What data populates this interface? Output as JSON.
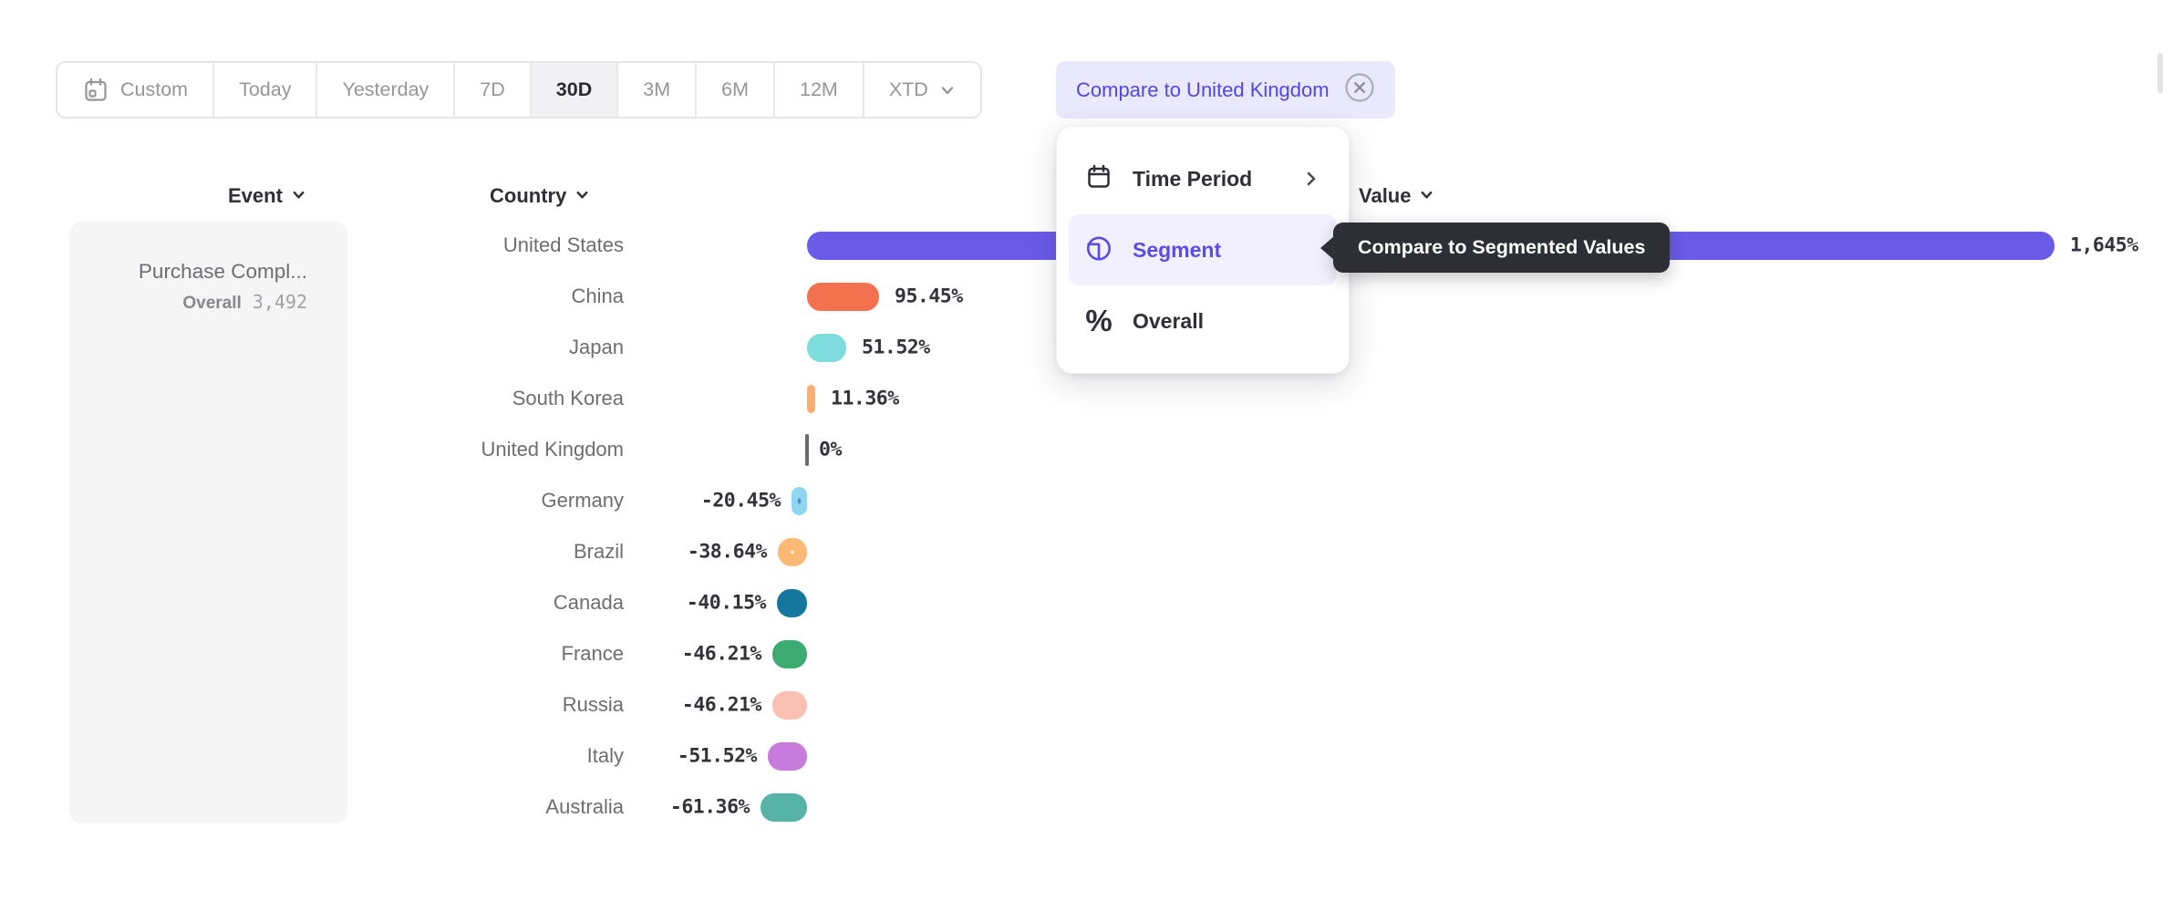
{
  "toolbar": {
    "buttons": [
      {
        "label": "Custom",
        "icon": "calendar-icon",
        "selected": false
      },
      {
        "label": "Today",
        "selected": false
      },
      {
        "label": "Yesterday",
        "selected": false
      },
      {
        "label": "7D",
        "selected": false
      },
      {
        "label": "30D",
        "selected": true
      },
      {
        "label": "3M",
        "selected": false
      },
      {
        "label": "6M",
        "selected": false
      },
      {
        "label": "12M",
        "selected": false
      },
      {
        "label": "XTD",
        "selected": false,
        "has_dropdown": true
      }
    ],
    "compare_chip": {
      "label": "Compare to United Kingdom",
      "close_icon": "circle-x-icon"
    }
  },
  "columns": {
    "event": "Event",
    "country": "Country",
    "value": "Value"
  },
  "event_panel": {
    "event_name": "Purchase Compl...",
    "metric_label": "Overall",
    "metric_value": "3,492"
  },
  "menu": {
    "items": [
      {
        "label": "Time Period",
        "icon": "calendar-icon",
        "has_submenu": true,
        "active": false
      },
      {
        "label": "Segment",
        "icon": "segment-icon",
        "active": true
      },
      {
        "label": "Overall",
        "icon": "percent-icon",
        "active": false
      }
    ]
  },
  "tooltip": {
    "text": "Compare to Segmented Values"
  },
  "colors": {
    "accent": "#5B4BE8",
    "chip_bg": "#E9E8FC",
    "menu_highlight": "#F2F0FC",
    "tooltip_bg": "#2E2E36",
    "selected_segment_bg": "#F1F1F3",
    "zero_line": "#6E686E"
  },
  "chart_data": {
    "type": "bar",
    "orientation": "horizontal",
    "title": "",
    "xlabel": "",
    "ylabel": "Country",
    "xlim": [
      -61.36,
      1645
    ],
    "baseline_value": 0,
    "grid": false,
    "legend": false,
    "categories": [
      "United States",
      "China",
      "Japan",
      "South Korea",
      "United Kingdom",
      "Germany",
      "Brazil",
      "Canada",
      "France",
      "Russia",
      "Italy",
      "Australia"
    ],
    "values": [
      1645,
      95.45,
      51.52,
      11.36,
      0,
      -20.45,
      -38.64,
      -40.15,
      -46.21,
      -46.21,
      -51.52,
      -61.36
    ],
    "value_labels": [
      "1,645%",
      "95.45%",
      "51.52%",
      "11.36%",
      "0%",
      "-20.45%",
      "-38.64%",
      "-40.15%",
      "-46.21%",
      "-46.21%",
      "-51.52%",
      "-61.36%"
    ],
    "bar_colors": [
      "#6A5AE8",
      "#F4714F",
      "#7EDBDE",
      "#FBAE6F",
      "#6E686E",
      "#8ED6F2",
      "#FBB975",
      "#15779E",
      "#3BAB6F",
      "#FBC0B4",
      "#C77CDC",
      "#57B3A8"
    ],
    "dot_pattern_colors": [
      null,
      null,
      null,
      null,
      null,
      "#5C87DA",
      "#FFFFFF",
      null,
      null,
      null,
      null,
      null
    ]
  }
}
